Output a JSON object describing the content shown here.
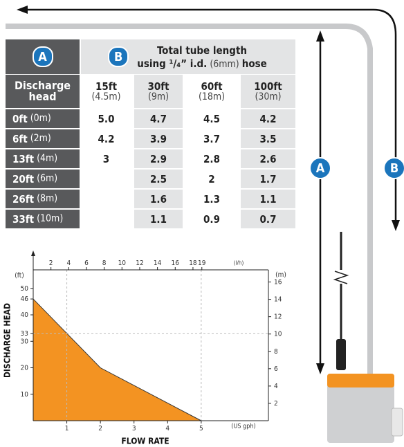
{
  "badges": {
    "a": "A",
    "b": "B"
  },
  "table": {
    "title": "Total tube length",
    "subtitle": [
      "using ¹/₄” i.d.",
      "(6mm)",
      "hose"
    ],
    "row_header": "Discharge head",
    "columns": [
      {
        "label": "15ft",
        "sub": "(4.5m)"
      },
      {
        "label": "30ft",
        "sub": "(9m)"
      },
      {
        "label": "60ft",
        "sub": "(18m)"
      },
      {
        "label": "100ft",
        "sub": "(30m)"
      }
    ],
    "rows": [
      {
        "label": "0ft",
        "sub": "(0m)",
        "values": [
          "5.0",
          "4.7",
          "4.5",
          "4.2"
        ]
      },
      {
        "label": "6ft",
        "sub": "(2m)",
        "values": [
          "4.2",
          "3.9",
          "3.7",
          "3.5"
        ]
      },
      {
        "label": "13ft",
        "sub": "(4m)",
        "values": [
          "3",
          "2.9",
          "2.8",
          "2.6"
        ]
      },
      {
        "label": "20ft",
        "sub": "(6m)",
        "values": [
          null,
          "2.5",
          "2",
          "1.7"
        ]
      },
      {
        "label": "26ft",
        "sub": "(8m)",
        "values": [
          null,
          "1.6",
          "1.3",
          "1.1"
        ]
      },
      {
        "label": "33ft",
        "sub": "(10m)",
        "values": [
          null,
          "1.1",
          "0.9",
          "0.7"
        ]
      }
    ]
  },
  "chart_data": {
    "type": "area",
    "x_label": "FLOW RATE",
    "y_label": "DISCHARGE HEAD",
    "y_unit": "(ft)",
    "y2_unit": "(m)",
    "x_unit": "(US gph)",
    "x2_unit": "(l/h)",
    "x": [
      0,
      1,
      2,
      5
    ],
    "values": [
      46,
      33,
      20,
      0
    ],
    "color": "#f39322",
    "xlim": [
      0,
      7
    ],
    "xticks": [
      1,
      2,
      3,
      4,
      5
    ],
    "x2lim": [
      0,
      26.5
    ],
    "x2ticks": [
      2,
      4,
      6,
      8,
      10,
      12,
      14,
      16,
      18,
      19
    ],
    "ylim": [
      0,
      57
    ],
    "yticks": [
      10,
      20,
      30,
      33,
      40,
      46,
      50
    ],
    "y2lim": [
      0,
      17.4
    ],
    "y2ticks": [
      2,
      4,
      6,
      8,
      10,
      12,
      14,
      16
    ]
  }
}
